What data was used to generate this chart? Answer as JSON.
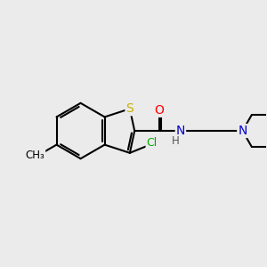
{
  "background_color": "#ebebeb",
  "bond_color": "#000000",
  "atom_colors": {
    "S": "#c8b000",
    "N": "#0000cc",
    "O": "#ff0000",
    "Cl": "#00aa00",
    "C": "#000000",
    "H": "#555555",
    "CH3": "#000000"
  },
  "bond_width": 1.5,
  "font_size": 9,
  "figsize": [
    3.0,
    3.0
  ],
  "dpi": 100
}
